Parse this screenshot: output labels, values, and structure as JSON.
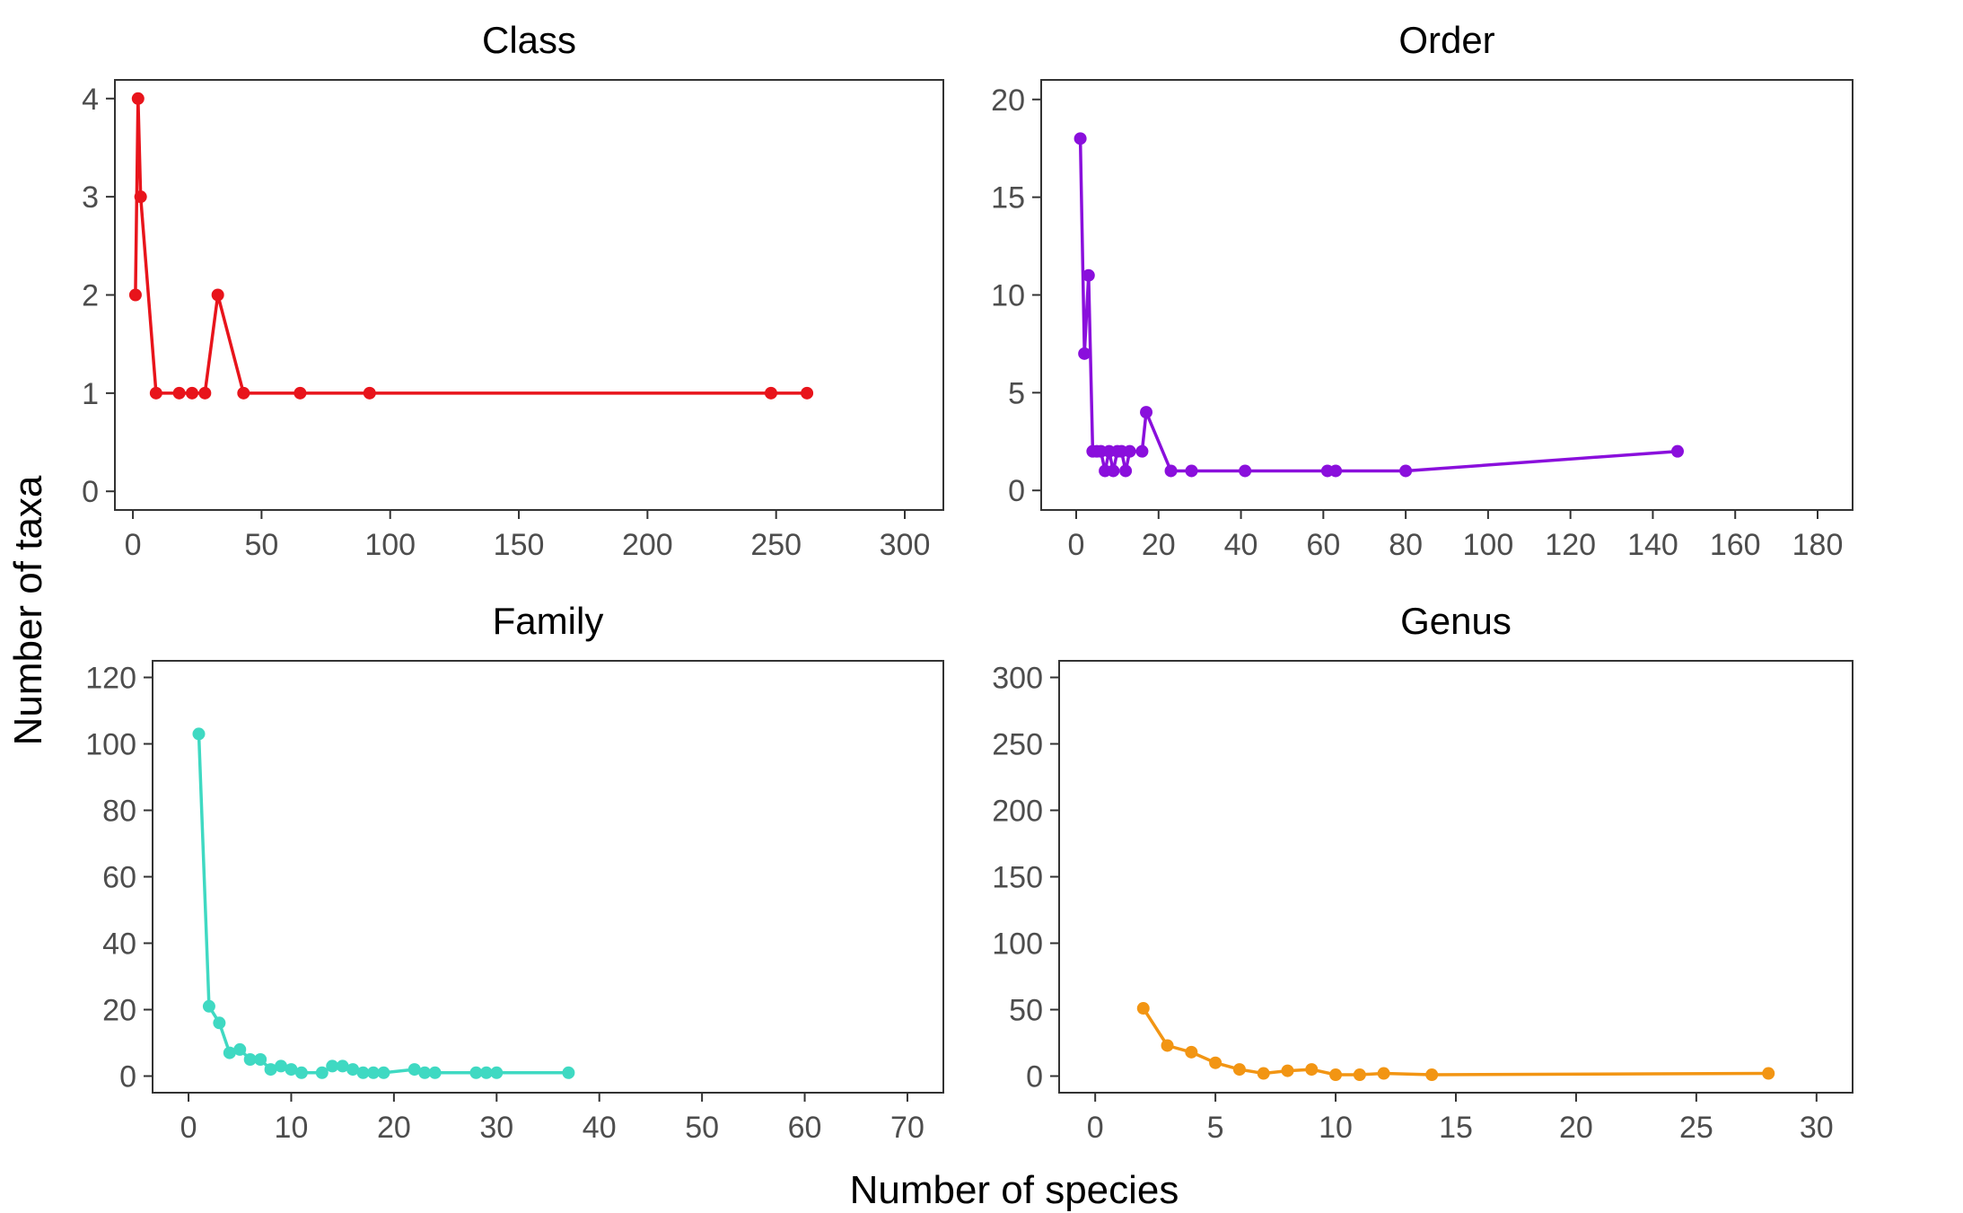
{
  "figure": {
    "xlabel": "Number of species",
    "ylabel": "Number of taxa"
  },
  "chart_data": [
    {
      "type": "line",
      "title": "Class",
      "color": "#e8141b",
      "xlim": [
        -7,
        315
      ],
      "ylim": [
        -0.19,
        4.19
      ],
      "xticks": [
        0,
        50,
        100,
        150,
        200,
        250,
        300
      ],
      "yticks": [
        0,
        1,
        2,
        3,
        4
      ],
      "points": [
        [
          1,
          2
        ],
        [
          2,
          4
        ],
        [
          3,
          3
        ],
        [
          9,
          1
        ],
        [
          18,
          1
        ],
        [
          23,
          1
        ],
        [
          28,
          1
        ],
        [
          33,
          2
        ],
        [
          43,
          1
        ],
        [
          65,
          1
        ],
        [
          92,
          1
        ],
        [
          248,
          1
        ],
        [
          262,
          1
        ]
      ]
    },
    {
      "type": "line",
      "title": "Order",
      "color": "#8a0fdc",
      "xlim": [
        -8.5,
        188.5
      ],
      "ylim": [
        -1,
        21
      ],
      "xticks": [
        0,
        20,
        40,
        60,
        80,
        100,
        120,
        140,
        160,
        180
      ],
      "yticks": [
        0,
        5,
        10,
        15,
        20
      ],
      "points": [
        [
          1,
          18
        ],
        [
          2,
          7
        ],
        [
          3,
          11
        ],
        [
          4,
          2
        ],
        [
          5,
          2
        ],
        [
          6,
          2
        ],
        [
          7,
          1
        ],
        [
          8,
          2
        ],
        [
          9,
          1
        ],
        [
          10,
          2
        ],
        [
          11,
          2
        ],
        [
          12,
          1
        ],
        [
          13,
          2
        ],
        [
          16,
          2
        ],
        [
          17,
          4
        ],
        [
          23,
          1
        ],
        [
          28,
          1
        ],
        [
          41,
          1
        ],
        [
          61,
          1
        ],
        [
          63,
          1
        ],
        [
          80,
          1
        ],
        [
          146,
          2
        ]
      ]
    },
    {
      "type": "line",
      "title": "Family",
      "color": "#3fd9c2",
      "xlim": [
        -3.5,
        73.5
      ],
      "ylim": [
        -5,
        125
      ],
      "xticks": [
        0,
        10,
        20,
        30,
        40,
        50,
        60,
        70
      ],
      "yticks": [
        0,
        20,
        40,
        60,
        80,
        100,
        120
      ],
      "points": [
        [
          1,
          103
        ],
        [
          2,
          21
        ],
        [
          3,
          16
        ],
        [
          4,
          7
        ],
        [
          5,
          8
        ],
        [
          6,
          5
        ],
        [
          7,
          5
        ],
        [
          8,
          2
        ],
        [
          9,
          3
        ],
        [
          10,
          2
        ],
        [
          11,
          1
        ],
        [
          13,
          1
        ],
        [
          14,
          3
        ],
        [
          15,
          3
        ],
        [
          16,
          2
        ],
        [
          17,
          1
        ],
        [
          18,
          1
        ],
        [
          19,
          1
        ],
        [
          22,
          2
        ],
        [
          23,
          1
        ],
        [
          24,
          1
        ],
        [
          28,
          1
        ],
        [
          29,
          1
        ],
        [
          30,
          1
        ],
        [
          37,
          1
        ]
      ]
    },
    {
      "type": "line",
      "title": "Genus",
      "color": "#f29513",
      "xlim": [
        -1.5,
        31.5
      ],
      "ylim": [
        -12.5,
        312.5
      ],
      "xticks": [
        0,
        5,
        10,
        15,
        20,
        25,
        30
      ],
      "yticks": [
        0,
        50,
        100,
        150,
        200,
        250,
        300
      ],
      "points": [
        [
          2,
          51
        ],
        [
          3,
          23
        ],
        [
          4,
          18
        ],
        [
          5,
          10
        ],
        [
          6,
          5
        ],
        [
          7,
          2
        ],
        [
          8,
          4
        ],
        [
          9,
          5
        ],
        [
          10,
          1
        ],
        [
          11,
          1
        ],
        [
          12,
          2
        ],
        [
          14,
          1
        ],
        [
          28,
          2
        ]
      ]
    }
  ]
}
